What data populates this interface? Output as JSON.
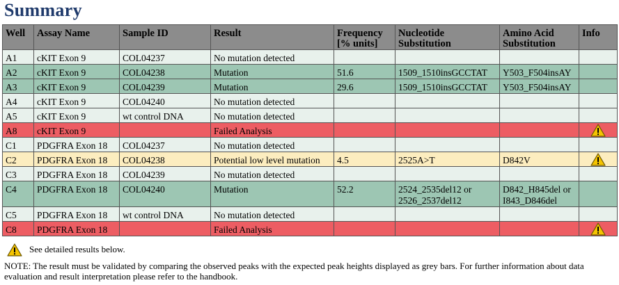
{
  "title": "Summary",
  "table": {
    "headers": {
      "well": "Well",
      "assay": "Assay Name",
      "sample": "Sample ID",
      "result": "Result",
      "frequency_line1": "Frequency",
      "frequency_line2": "[% units]",
      "nucleotide_line1": "Nucleotide",
      "nucleotide_line2": "Substitution",
      "amino_line1": "Amino Acid",
      "amino_line2": "Substitution",
      "info": "Info"
    },
    "rows": [
      {
        "well": "A1",
        "assay": "cKIT Exon 9",
        "sample": "COL04237",
        "result": "No mutation detected",
        "frequency": "",
        "nucleotide": "",
        "amino": "",
        "status": "none",
        "warning": false
      },
      {
        "well": "A2",
        "assay": "cKIT Exon 9",
        "sample": "COL04238",
        "result": "Mutation",
        "frequency": "51.6",
        "nucleotide": "1509_1510insGCCTAT",
        "amino": "Y503_F504insAY",
        "status": "mutation",
        "warning": false
      },
      {
        "well": "A3",
        "assay": "cKIT Exon 9",
        "sample": "COL04239",
        "result": "Mutation",
        "frequency": "29.6",
        "nucleotide": "1509_1510insGCCTAT",
        "amino": "Y503_F504insAY",
        "status": "mutation",
        "warning": false
      },
      {
        "well": "A4",
        "assay": "cKIT Exon 9",
        "sample": "COL04240",
        "result": "No mutation detected",
        "frequency": "",
        "nucleotide": "",
        "amino": "",
        "status": "none",
        "warning": false
      },
      {
        "well": "A5",
        "assay": "cKIT Exon 9",
        "sample": "wt control DNA",
        "result": "No mutation detected",
        "frequency": "",
        "nucleotide": "",
        "amino": "",
        "status": "none",
        "warning": false
      },
      {
        "well": "A8",
        "assay": "cKIT Exon 9",
        "sample": "",
        "result": "Failed Analysis",
        "frequency": "",
        "nucleotide": "",
        "amino": "",
        "status": "failed",
        "warning": true
      },
      {
        "well": "C1",
        "assay": "PDGFRA Exon 18",
        "sample": "COL04237",
        "result": "No mutation detected",
        "frequency": "",
        "nucleotide": "",
        "amino": "",
        "status": "none",
        "warning": false
      },
      {
        "well": "C2",
        "assay": "PDGFRA Exon 18",
        "sample": "COL04238",
        "result": "Potential low level mutation",
        "frequency": "4.5",
        "nucleotide": "2525A>T",
        "amino": "D842V",
        "status": "low",
        "warning": true
      },
      {
        "well": "C3",
        "assay": "PDGFRA Exon 18",
        "sample": "COL04239",
        "result": "No mutation detected",
        "frequency": "",
        "nucleotide": "",
        "amino": "",
        "status": "none",
        "warning": false
      },
      {
        "well": "C4",
        "assay": "PDGFRA Exon 18",
        "sample": "COL04240",
        "result": "Mutation",
        "frequency": "52.2",
        "nucleotide": "2524_2535del12 or 2526_2537del12",
        "amino": "D842_H845del or I843_D846del",
        "status": "mutation",
        "warning": false
      },
      {
        "well": "C5",
        "assay": "PDGFRA Exon 18",
        "sample": "wt control DNA",
        "result": "No mutation detected",
        "frequency": "",
        "nucleotide": "",
        "amino": "",
        "status": "none",
        "warning": false
      },
      {
        "well": "C8",
        "assay": "PDGFRA Exon 18",
        "sample": "",
        "result": "Failed Analysis",
        "frequency": "",
        "nucleotide": "",
        "amino": "",
        "status": "failed",
        "warning": true
      }
    ]
  },
  "legend_text": "See detailed results below.",
  "note": "NOTE: The result must be validated by comparing the observed peaks with the expected peak heights displayed as grey bars. For further information about data evaluation and result interpretation please refer to the handbook.",
  "colors": {
    "title": "#1f3a6b",
    "header_bg": "#8c8c8c",
    "no_mutation_bg": "#e8f1ec",
    "mutation_bg": "#9dc6b3",
    "failed_bg": "#ed5d63",
    "low_level_bg": "#fcedbf",
    "warning_icon_fill": "#f5c400"
  }
}
